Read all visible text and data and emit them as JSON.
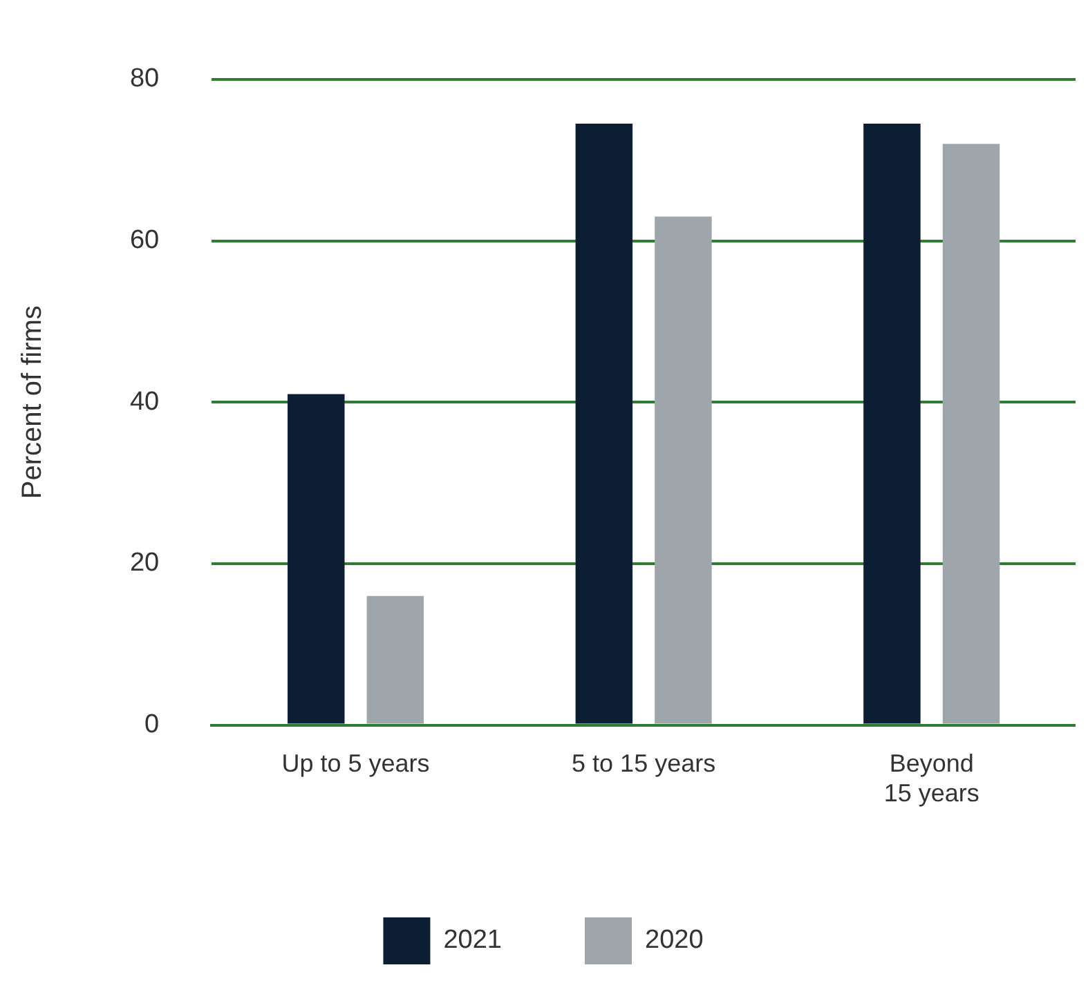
{
  "chart_data": {
    "type": "bar",
    "ylabel": "Percent of firms",
    "categories": [
      "Up to 5 years",
      "5 to 15 years",
      "Beyond\n15 years"
    ],
    "series": [
      {
        "name": "2021",
        "color": "#0c1e33",
        "values": [
          41,
          74.5,
          74.5
        ]
      },
      {
        "name": "2020",
        "color": "#9ea6ac",
        "values": [
          16,
          63,
          72
        ]
      }
    ],
    "ylim": [
      0,
      80
    ],
    "yticks": [
      0,
      20,
      40,
      60,
      80
    ],
    "grid": "y",
    "legend": "bottom"
  }
}
